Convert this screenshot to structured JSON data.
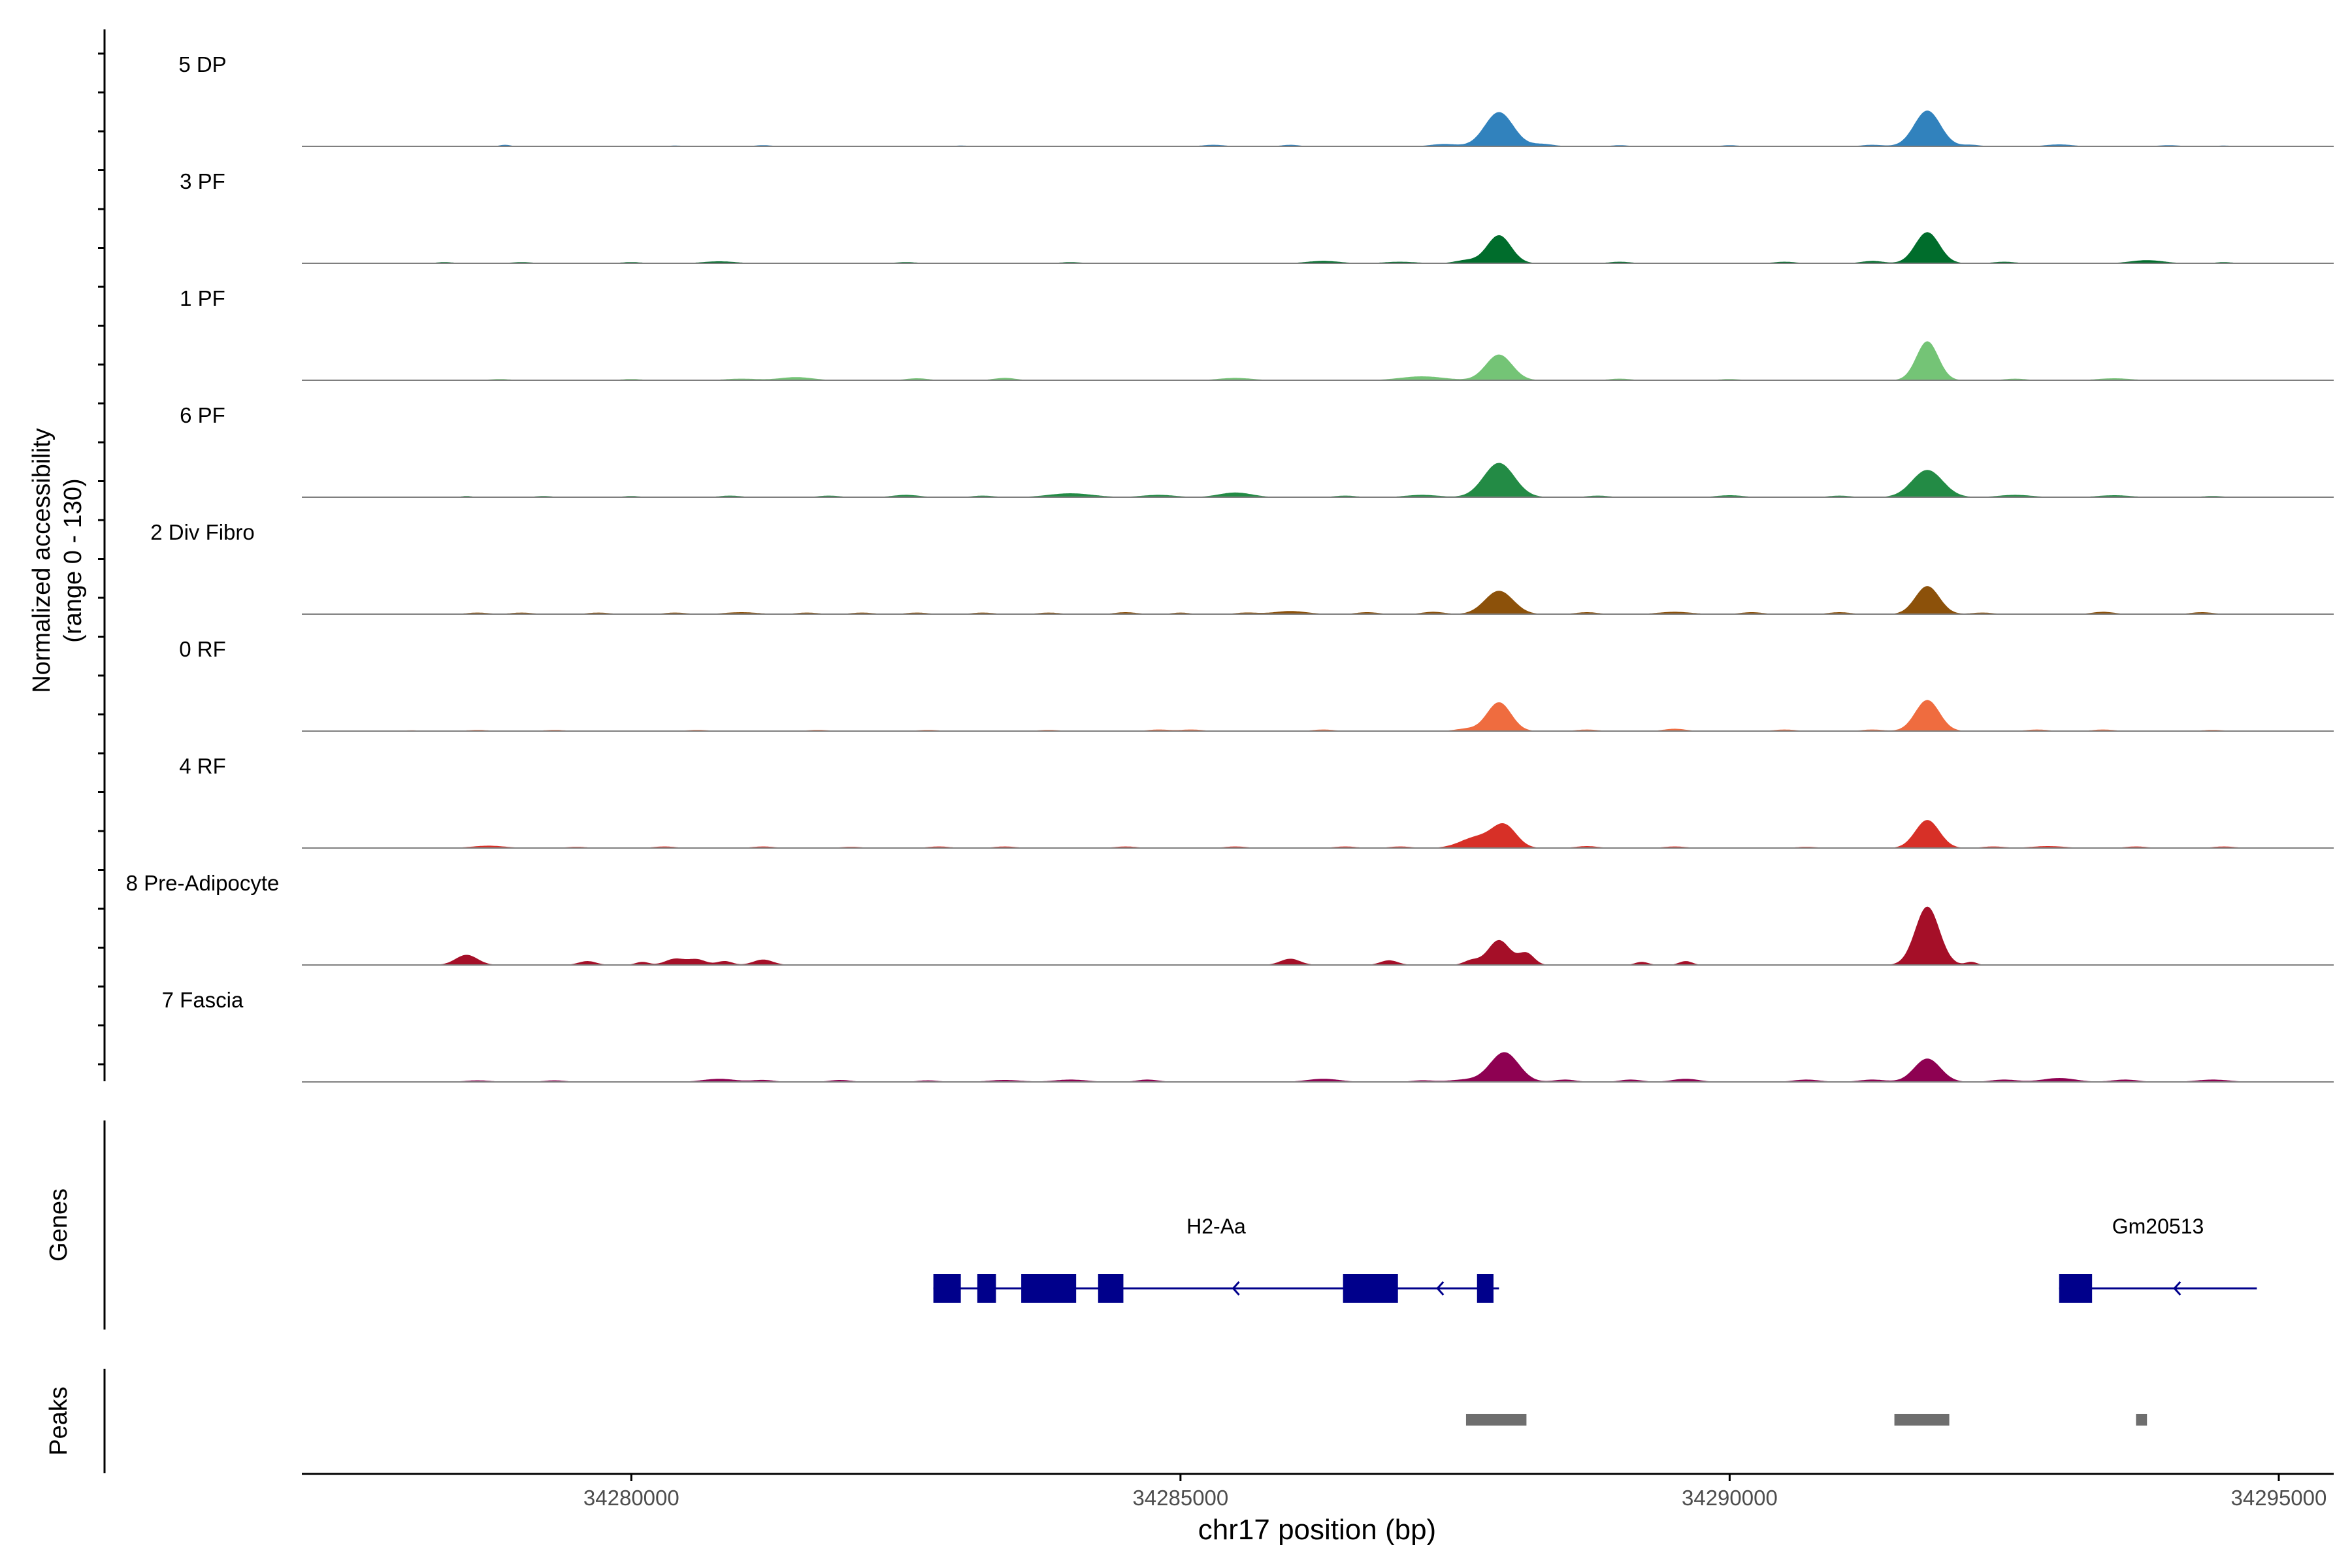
{
  "chart_data": {
    "type": "area",
    "ylabel": "Normalized accessibility",
    "ylabel_range": "(range 0 - 130)",
    "xlabel": "chr17 position (bp)",
    "xlim": [
      34277000,
      34295500
    ],
    "x_ticks": [
      34280000,
      34285000,
      34290000,
      34295000
    ],
    "x_tick_labels": [
      "34280000",
      "34285000",
      "34290000",
      "34295000"
    ],
    "y_range": [
      0,
      130
    ],
    "series": [
      {
        "name": "5 DP",
        "color": "#3182bd",
        "peaks": [
          [
            34278850,
            2,
            50
          ],
          [
            34280400,
            1,
            80
          ],
          [
            34281200,
            1.5,
            80
          ],
          [
            34283000,
            1,
            80
          ],
          [
            34285300,
            2,
            100
          ],
          [
            34286000,
            2,
            80
          ],
          [
            34287400,
            3,
            120
          ],
          [
            34287900,
            44,
            130
          ],
          [
            34288300,
            3,
            100
          ],
          [
            34289000,
            1.5,
            80
          ],
          [
            34290000,
            1.5,
            80
          ],
          [
            34291300,
            2,
            100
          ],
          [
            34291800,
            46,
            120
          ],
          [
            34292200,
            2,
            80
          ],
          [
            34293000,
            2.5,
            120
          ],
          [
            34294000,
            1.5,
            100
          ],
          [
            34294500,
            1,
            80
          ]
        ]
      },
      {
        "name": "3 PF",
        "color": "#006d2c",
        "peaks": [
          [
            34278300,
            1.5,
            80
          ],
          [
            34279000,
            1.5,
            100
          ],
          [
            34280000,
            1.5,
            100
          ],
          [
            34280800,
            2.5,
            150
          ],
          [
            34282500,
            1.5,
            100
          ],
          [
            34284000,
            1.5,
            100
          ],
          [
            34286300,
            3,
            150
          ],
          [
            34287000,
            2,
            150
          ],
          [
            34287600,
            4,
            100
          ],
          [
            34287900,
            36,
            110
          ],
          [
            34289000,
            2,
            100
          ],
          [
            34290500,
            2,
            100
          ],
          [
            34291300,
            3,
            100
          ],
          [
            34291800,
            40,
            110
          ],
          [
            34292500,
            2,
            100
          ],
          [
            34293800,
            4,
            150
          ],
          [
            34294500,
            1.5,
            80
          ]
        ]
      },
      {
        "name": "1 PF",
        "color": "#74c476",
        "peaks": [
          [
            34278800,
            1.5,
            100
          ],
          [
            34280000,
            1.5,
            100
          ],
          [
            34281000,
            2,
            150
          ],
          [
            34281500,
            4,
            150
          ],
          [
            34282600,
            2.5,
            100
          ],
          [
            34283400,
            3,
            100
          ],
          [
            34285500,
            3,
            150
          ],
          [
            34287200,
            5,
            200
          ],
          [
            34287900,
            33,
            120
          ],
          [
            34289000,
            2,
            100
          ],
          [
            34290000,
            1.5,
            100
          ],
          [
            34291800,
            50,
            100
          ],
          [
            34292600,
            2,
            100
          ],
          [
            34293500,
            2.5,
            150
          ]
        ]
      },
      {
        "name": "6 PF",
        "color": "#238b45",
        "peaks": [
          [
            34278500,
            1.5,
            50
          ],
          [
            34279200,
            1.5,
            80
          ],
          [
            34280000,
            1.5,
            80
          ],
          [
            34280900,
            2,
            100
          ],
          [
            34281800,
            2,
            100
          ],
          [
            34282500,
            3,
            120
          ],
          [
            34283200,
            2,
            100
          ],
          [
            34284000,
            5,
            200
          ],
          [
            34284800,
            3,
            150
          ],
          [
            34285500,
            6,
            150
          ],
          [
            34286500,
            2,
            100
          ],
          [
            34287200,
            3,
            150
          ],
          [
            34287900,
            44,
            140
          ],
          [
            34288800,
            2,
            100
          ],
          [
            34290000,
            2.5,
            120
          ],
          [
            34291000,
            2,
            100
          ],
          [
            34291800,
            35,
            140
          ],
          [
            34292600,
            3,
            150
          ],
          [
            34293500,
            2.5,
            150
          ],
          [
            34294400,
            1.5,
            100
          ]
        ]
      },
      {
        "name": "2 Div Fibro",
        "color": "#8c510a",
        "peaks": [
          [
            34278600,
            2,
            100
          ],
          [
            34279000,
            2,
            100
          ],
          [
            34279700,
            2,
            100
          ],
          [
            34280400,
            2,
            100
          ],
          [
            34281000,
            2.5,
            150
          ],
          [
            34281600,
            2,
            100
          ],
          [
            34282100,
            2,
            100
          ],
          [
            34282600,
            2,
            100
          ],
          [
            34283200,
            2,
            100
          ],
          [
            34283800,
            2,
            100
          ],
          [
            34284500,
            2.5,
            100
          ],
          [
            34285000,
            2,
            80
          ],
          [
            34285600,
            2,
            100
          ],
          [
            34286000,
            4,
            150
          ],
          [
            34286700,
            2.5,
            100
          ],
          [
            34287300,
            3,
            100
          ],
          [
            34287900,
            30,
            130
          ],
          [
            34288700,
            2.5,
            100
          ],
          [
            34289500,
            3,
            150
          ],
          [
            34290200,
            2.5,
            100
          ],
          [
            34291000,
            2.5,
            100
          ],
          [
            34291800,
            36,
            110
          ],
          [
            34292300,
            2,
            100
          ],
          [
            34293400,
            3,
            100
          ],
          [
            34294300,
            2.5,
            100
          ]
        ]
      },
      {
        "name": "0 RF",
        "color": "#ef6c3f",
        "peaks": [
          [
            34278000,
            1,
            80
          ],
          [
            34278600,
            1.5,
            100
          ],
          [
            34279300,
            1.5,
            100
          ],
          [
            34280600,
            1.5,
            100
          ],
          [
            34281700,
            1.5,
            100
          ],
          [
            34282700,
            1.5,
            100
          ],
          [
            34283800,
            1.5,
            100
          ],
          [
            34284800,
            2,
            100
          ],
          [
            34285100,
            2,
            100
          ],
          [
            34286300,
            2,
            100
          ],
          [
            34287600,
            3,
            100
          ],
          [
            34287900,
            37,
            110
          ],
          [
            34288700,
            2,
            100
          ],
          [
            34289500,
            3,
            100
          ],
          [
            34290500,
            2,
            100
          ],
          [
            34291300,
            2,
            100
          ],
          [
            34291800,
            40,
            110
          ],
          [
            34292800,
            2,
            100
          ],
          [
            34293400,
            2,
            100
          ],
          [
            34294400,
            1.5,
            100
          ]
        ]
      },
      {
        "name": "4 RF",
        "color": "#d73027",
        "peaks": [
          [
            34278700,
            3,
            150
          ],
          [
            34279500,
            1.5,
            100
          ],
          [
            34280300,
            2,
            100
          ],
          [
            34281200,
            2,
            100
          ],
          [
            34282000,
            1.5,
            100
          ],
          [
            34282800,
            2,
            100
          ],
          [
            34283400,
            2,
            100
          ],
          [
            34284500,
            2,
            100
          ],
          [
            34285500,
            2,
            100
          ],
          [
            34286500,
            2,
            100
          ],
          [
            34287000,
            2,
            100
          ],
          [
            34287700,
            14,
            150
          ],
          [
            34287950,
            28,
            110
          ],
          [
            34288700,
            2.5,
            100
          ],
          [
            34289500,
            2,
            100
          ],
          [
            34290700,
            1.5,
            100
          ],
          [
            34291800,
            36,
            110
          ],
          [
            34292400,
            2,
            100
          ],
          [
            34292900,
            2.5,
            150
          ],
          [
            34293700,
            2,
            100
          ],
          [
            34294500,
            2,
            100
          ]
        ]
      },
      {
        "name": "8 Pre-Adipocyte",
        "color": "#a50f28",
        "peaks": [
          [
            34278500,
            13,
            100
          ],
          [
            34279600,
            5,
            80
          ],
          [
            34280100,
            4,
            60
          ],
          [
            34280400,
            8,
            90
          ],
          [
            34280600,
            7,
            80
          ],
          [
            34280850,
            5,
            70
          ],
          [
            34281200,
            7,
            90
          ],
          [
            34286000,
            8,
            90
          ],
          [
            34286900,
            6,
            80
          ],
          [
            34287650,
            6,
            70
          ],
          [
            34287900,
            32,
            100
          ],
          [
            34288150,
            15,
            70
          ],
          [
            34289200,
            4,
            60
          ],
          [
            34289600,
            5,
            60
          ],
          [
            34291800,
            75,
            110
          ],
          [
            34292200,
            4,
            50
          ]
        ]
      },
      {
        "name": "7 Fascia",
        "color": "#8e0152",
        "peaks": [
          [
            34278600,
            2,
            120
          ],
          [
            34279300,
            2,
            100
          ],
          [
            34280800,
            4,
            150
          ],
          [
            34281200,
            2.5,
            100
          ],
          [
            34281900,
            2.5,
            100
          ],
          [
            34282700,
            2,
            100
          ],
          [
            34283400,
            2.5,
            150
          ],
          [
            34284000,
            3,
            150
          ],
          [
            34284700,
            3,
            100
          ],
          [
            34286300,
            4,
            150
          ],
          [
            34287200,
            2,
            100
          ],
          [
            34287600,
            3,
            150
          ],
          [
            34287950,
            38,
            130
          ],
          [
            34288500,
            3,
            100
          ],
          [
            34289100,
            3,
            100
          ],
          [
            34289600,
            4,
            120
          ],
          [
            34290700,
            3,
            120
          ],
          [
            34291300,
            3,
            120
          ],
          [
            34291800,
            30,
            120
          ],
          [
            34292500,
            3,
            120
          ],
          [
            34293000,
            5,
            150
          ],
          [
            34293600,
            3,
            120
          ],
          [
            34294400,
            3,
            150
          ]
        ]
      }
    ],
    "genes_label": "Genes",
    "genes": [
      {
        "name": "H2-Aa",
        "strand": "-",
        "start": 34282750,
        "end": 34287900,
        "exons": [
          [
            34282750,
            34283000
          ],
          [
            34283150,
            34283320
          ],
          [
            34283550,
            34284050
          ],
          [
            34284250,
            34284480
          ],
          [
            34286480,
            34286980
          ],
          [
            34287700,
            34287850
          ]
        ]
      },
      {
        "name": "Gm20513",
        "strand": "-",
        "start": 34293000,
        "end": 34294800,
        "exons": [
          [
            34293000,
            34293300
          ]
        ]
      }
    ],
    "peaks_label": "Peaks",
    "peak_regions": [
      [
        34287600,
        34288150
      ],
      [
        34291500,
        34292000
      ],
      [
        34293700,
        34293800
      ]
    ]
  }
}
